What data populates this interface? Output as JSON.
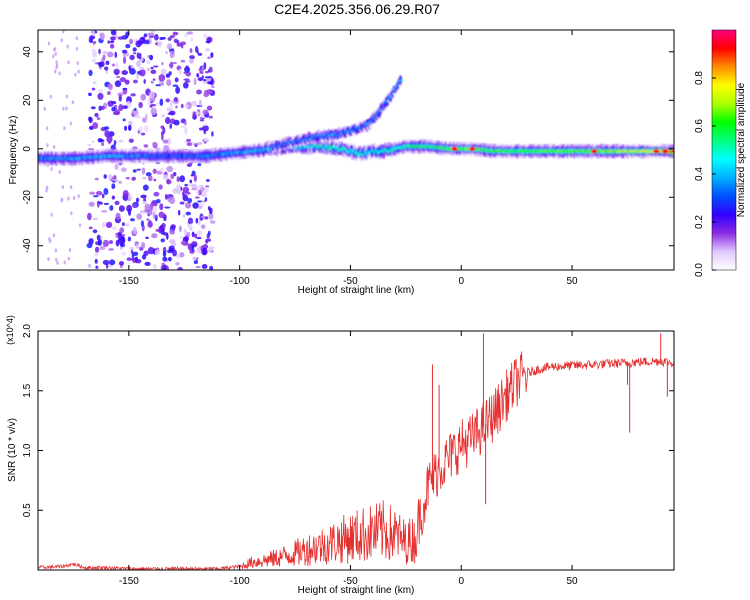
{
  "chart_data": [
    {
      "type": "heatmap",
      "title": "C2E4.2025.356.06.29.R07",
      "xlabel": "Height of straight line (km)",
      "ylabel": "Frequency (Hz)",
      "xlim": [
        -191,
        96
      ],
      "ylim": [
        -50,
        49
      ],
      "xticks": [
        -150,
        -100,
        -50,
        0,
        50
      ],
      "yticks": [
        -40,
        -20,
        0,
        20,
        40
      ],
      "colorbar": {
        "label": "Normalized spectral amplitude",
        "range": [
          0,
          1
        ],
        "ticks": [
          "0.0",
          "0.2",
          "0.4",
          "0.6",
          "0.8"
        ],
        "colors": [
          "#ffffff",
          "#e0c8ff",
          "#8a2be2",
          "#3200ff",
          "#0050ff",
          "#00b0ff",
          "#00ffff",
          "#00ff80",
          "#00ff00",
          "#aaff00",
          "#ffff00",
          "#ff8c00",
          "#ff0000",
          "#ff0080"
        ]
      },
      "ridges": [
        {
          "name": "main-line",
          "x": [
            -191,
            -175,
            -160,
            -145,
            -130,
            -115,
            -105,
            -95,
            -85,
            -75,
            -65,
            -55,
            -45,
            -40,
            -35,
            -30,
            -25,
            -15,
            -5,
            5,
            15,
            30,
            50,
            70,
            90,
            96
          ],
          "y": [
            -4,
            -4,
            -3,
            -3,
            -3,
            -3,
            -2,
            -1,
            0,
            1,
            1,
            0,
            -2,
            -1,
            -1,
            0,
            1,
            1,
            0,
            0,
            -1,
            -1,
            -1,
            -1,
            -1,
            -1
          ]
        },
        {
          "name": "upper-branch",
          "x": [
            -85,
            -75,
            -65,
            -55,
            -48,
            -42,
            -38,
            -34,
            -30,
            -27
          ],
          "y": [
            1,
            3,
            5,
            6,
            8,
            10,
            14,
            19,
            24,
            29
          ]
        }
      ],
      "intensity_profile": {
        "x": [
          -191,
          -160,
          -130,
          -110,
          -90,
          -60,
          -40,
          -20,
          0,
          20,
          50,
          90,
          96
        ],
        "amplitude": [
          0.35,
          0.4,
          0.3,
          0.35,
          0.4,
          0.5,
          0.45,
          0.55,
          0.65,
          0.6,
          0.62,
          0.75,
          0.9
        ]
      },
      "noise_region": {
        "x_range": [
          -168,
          -112
        ],
        "description": "scattered low-amplitude speckle"
      }
    },
    {
      "type": "line",
      "title": "",
      "xlabel": "Height of straight line (km)",
      "ylabel": "SNR (10 * v/v)",
      "ylabel_multiplier": "(x10^4)",
      "xlim": [
        -191,
        96
      ],
      "ylim": [
        0,
        2.0
      ],
      "xticks": [
        -150,
        -100,
        -50,
        0,
        50
      ],
      "yticks": [
        0.5,
        1.0,
        1.5,
        2.0
      ],
      "ytick_labels": [
        "0.5",
        "1.0",
        "1.5",
        "2.0"
      ],
      "color": "#e53030",
      "series": [
        {
          "name": "SNR",
          "x": [
            -191,
            -180,
            -175,
            -170,
            -160,
            -150,
            -140,
            -130,
            -120,
            -110,
            -100,
            -95,
            -90,
            -85,
            -80,
            -75,
            -70,
            -65,
            -60,
            -55,
            -50,
            -45,
            -40,
            -35,
            -30,
            -25,
            -20,
            -15,
            -10,
            -5,
            0,
            5,
            10,
            15,
            20,
            25,
            30,
            35,
            40,
            50,
            60,
            70,
            80,
            90,
            96
          ],
          "y": [
            0.02,
            0.03,
            0.05,
            0.02,
            0.02,
            0.01,
            0.01,
            0.01,
            0.01,
            0.01,
            0.03,
            0.08,
            0.1,
            0.12,
            0.15,
            0.18,
            0.22,
            0.25,
            0.28,
            0.32,
            0.35,
            0.38,
            0.4,
            0.42,
            0.38,
            0.3,
            0.35,
            0.7,
            0.85,
            0.95,
            1.05,
            1.1,
            1.2,
            1.3,
            1.45,
            1.58,
            1.65,
            1.68,
            1.7,
            1.71,
            1.72,
            1.73,
            1.74,
            1.75,
            1.73
          ]
        }
      ],
      "spikes": [
        {
          "x": -13,
          "y": 1.72
        },
        {
          "x": -10,
          "y": 1.55
        },
        {
          "x": 10,
          "y": 1.98
        },
        {
          "x": 11,
          "y": 0.55
        },
        {
          "x": 75,
          "y": 1.55
        },
        {
          "x": 76,
          "y": 1.15
        },
        {
          "x": 90,
          "y": 1.98
        },
        {
          "x": 93,
          "y": 1.45
        }
      ]
    }
  ]
}
